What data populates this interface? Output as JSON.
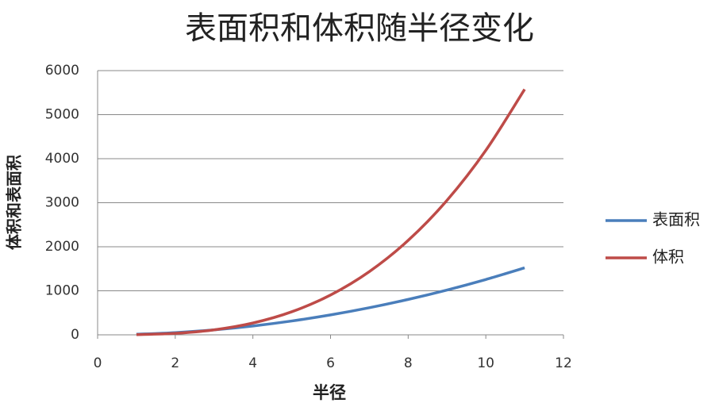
{
  "chart_data": {
    "type": "line",
    "title": "表面积和体积随半径变化",
    "x_label": "半径",
    "y_label": "体积和表面积",
    "x": [
      1,
      2,
      3,
      4,
      5,
      6,
      7,
      8,
      9,
      10,
      11
    ],
    "series": [
      {
        "name": "表面积",
        "color": "#4a7ebb",
        "values": [
          12.57,
          50.27,
          113.1,
          201.06,
          314.16,
          452.39,
          615.75,
          804.25,
          1017.88,
          1256.64,
          1520.53
        ]
      },
      {
        "name": "体积",
        "color": "#be4b48",
        "values": [
          4.19,
          33.51,
          113.1,
          268.08,
          523.6,
          904.78,
          1436.76,
          2144.66,
          3053.63,
          4188.79,
          5575.28
        ]
      }
    ],
    "xlim": [
      0,
      12
    ],
    "xticks": [
      0,
      2,
      4,
      6,
      8,
      10,
      12
    ],
    "ylim": [
      0,
      6000
    ],
    "yticks": [
      0,
      1000,
      2000,
      3000,
      4000,
      5000,
      6000
    ],
    "grid": true,
    "legend": "right"
  }
}
